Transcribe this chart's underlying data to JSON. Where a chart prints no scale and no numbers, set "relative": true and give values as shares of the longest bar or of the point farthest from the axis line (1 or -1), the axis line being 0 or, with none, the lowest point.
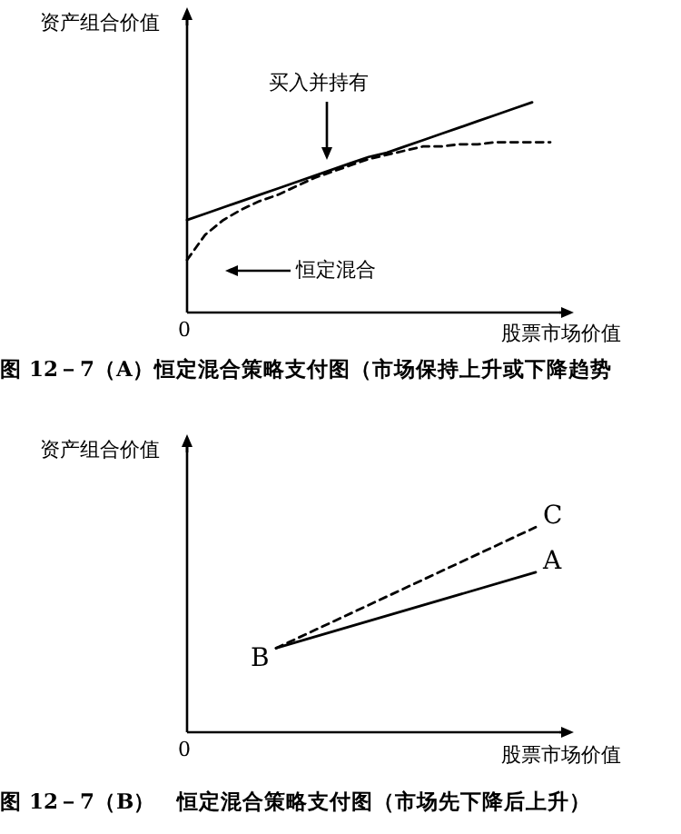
{
  "chart_data": [
    {
      "type": "line",
      "relative": true,
      "title": "图 12－7（A）恒定混合策略支付图（市场保持上升或下降趋势",
      "xlabel": "股票市场价值",
      "ylabel": "资产组合价值",
      "categories": [
        null,
        null,
        null,
        null,
        null,
        null,
        null,
        null,
        null,
        null,
        null,
        null,
        null,
        null,
        null,
        null,
        null,
        null,
        null,
        null,
        null
      ],
      "series": [
        {
          "color": "#000000",
          "line_style": "solid",
          "values": [
            0.44,
            0.47,
            0.5,
            0.53,
            0.56,
            0.59,
            0.62,
            0.65,
            0.68,
            0.71,
            0.74,
            0.76,
            0.79,
            0.82,
            0.85,
            0.88,
            0.91,
            0.94,
            0.97,
            1.0,
            null
          ]
        },
        {
          "color": "#000000",
          "line_style": "dashed",
          "values": [
            0.25,
            0.37,
            0.44,
            0.49,
            0.53,
            0.56,
            0.6,
            0.64,
            0.67,
            0.7,
            0.73,
            0.75,
            0.77,
            0.79,
            0.79,
            0.8,
            0.8,
            0.81,
            0.81,
            0.81,
            0.81
          ]
        }
      ],
      "annotations": [
        "买入并持有",
        "恒定混合",
        "0"
      ]
    },
    {
      "type": "line",
      "relative": true,
      "title": "图 12－7（B）　恒定混合策略支付图（市场先下降后上升）",
      "xlabel": "股票市场价值",
      "ylabel": "资产组合价值",
      "categories": [
        null,
        null
      ],
      "series": [
        {
          "name": "C",
          "color": "#000000",
          "line_style": "dashed",
          "values": [
            0.41,
            1.0
          ]
        },
        {
          "name": "A",
          "color": "#000000",
          "line_style": "solid",
          "values": [
            0.41,
            0.78
          ]
        }
      ],
      "annotations": [
        "B",
        "0"
      ]
    }
  ]
}
